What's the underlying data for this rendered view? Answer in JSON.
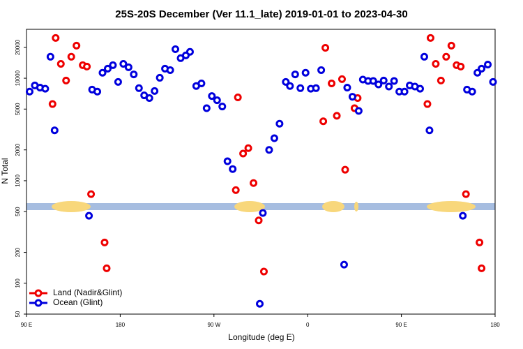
{
  "chart_data": {
    "type": "scatter",
    "title": "25S-20S December (Ver 11.1_late)   2019-01-01 to 2023-04-30",
    "xlabel": "Longitude (deg E)",
    "ylabel": "N Total",
    "ylog": true,
    "xlim": [
      90,
      540
    ],
    "xticks": [
      {
        "value": 90,
        "label": "90 E"
      },
      180,
      {
        "value": 270,
        "label": "90 W"
      },
      {
        "value": 360,
        "label": "0"
      },
      {
        "value": 450,
        "label": "90 E"
      },
      {
        "value": 540,
        "label": "180"
      }
    ],
    "ylim": [
      50,
      30000
    ],
    "yticks": [
      50,
      100,
      200,
      500,
      1000,
      2000,
      5000,
      10000,
      20000
    ],
    "legend": "bottom-left",
    "series": [
      {
        "name": "Land (Nadir&Glint)",
        "color": "#ee0000",
        "x": [
          115,
          118,
          123,
          128,
          133,
          138,
          144,
          148,
          152,
          165,
          167,
          291,
          293,
          298,
          303,
          308,
          313,
          318,
          375,
          377,
          383,
          388,
          393,
          396,
          405,
          408,
          475,
          478,
          483,
          488,
          493,
          498,
          503,
          507,
          512,
          525,
          527
        ],
        "values": [
          5600,
          24700,
          13800,
          9500,
          16200,
          20800,
          13400,
          13000,
          740,
          250,
          140,
          810,
          6500,
          1840,
          2080,
          950,
          410,
          130,
          3800,
          19800,
          8900,
          4300,
          9800,
          1280,
          5100,
          6400,
          5600,
          24700,
          13800,
          9500,
          16200,
          20800,
          13400,
          13000,
          740,
          250,
          140
        ]
      },
      {
        "name": "Ocean (Glint)",
        "color": "#0000dd",
        "x": [
          93,
          98,
          103,
          108,
          113,
          117,
          150,
          153,
          158,
          163,
          168,
          173,
          178,
          183,
          188,
          193,
          198,
          203,
          208,
          213,
          218,
          223,
          228,
          233,
          238,
          243,
          247,
          253,
          258,
          263,
          268,
          273,
          278,
          283,
          288,
          314,
          317,
          323,
          328,
          333,
          339,
          343,
          348,
          353,
          358,
          363,
          368,
          373,
          395,
          398,
          403,
          409,
          413,
          418,
          423,
          428,
          433,
          438,
          443,
          448,
          453,
          458,
          463,
          468,
          472,
          477,
          509,
          513,
          518,
          523,
          527,
          533,
          538
        ],
        "values": [
          7400,
          8500,
          8100,
          7900,
          16200,
          3100,
          455,
          7750,
          7400,
          11300,
          12400,
          13400,
          9200,
          13800,
          12800,
          10900,
          8000,
          6800,
          6400,
          7500,
          10100,
          12400,
          12000,
          19200,
          15700,
          16700,
          18100,
          8400,
          8900,
          5100,
          6700,
          6100,
          5300,
          1550,
          1300,
          63,
          485,
          2000,
          2600,
          3600,
          9200,
          8400,
          10900,
          8000,
          11300,
          7900,
          8000,
          12000,
          152,
          8100,
          6600,
          4800,
          9700,
          9400,
          9400,
          8700,
          9500,
          8300,
          9400,
          7400,
          7400,
          8500,
          8300,
          7900,
          16200,
          3100,
          455,
          7750,
          7400,
          11300,
          12400,
          13600,
          9200
        ]
      }
    ]
  }
}
